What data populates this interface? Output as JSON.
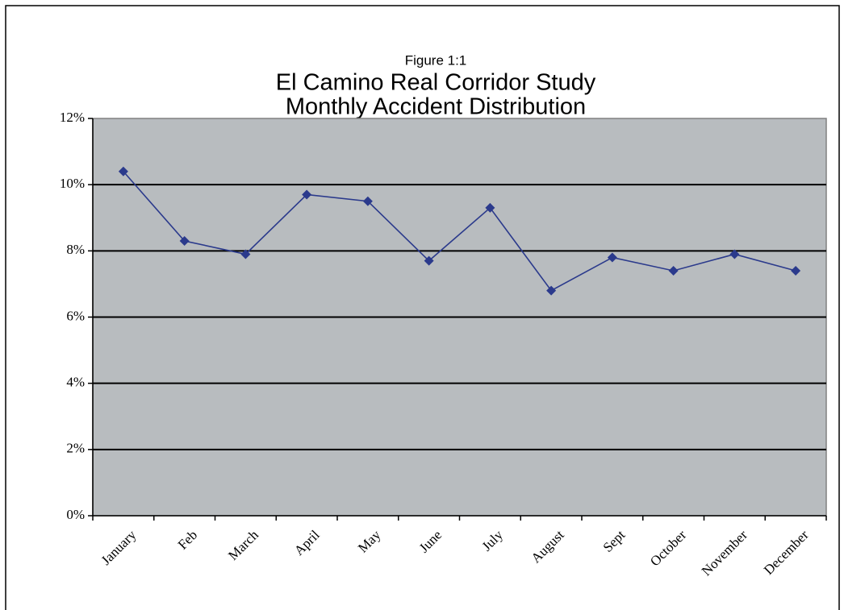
{
  "chart_data": {
    "type": "line",
    "supertitle": "Figure 1:1",
    "title": "El Camino Real Corridor Study",
    "subtitle": "Monthly Accident Distribution",
    "categories": [
      "January",
      "Feb",
      "March",
      "April",
      "May",
      "June",
      "July",
      "August",
      "Sept",
      "October",
      "November",
      "December"
    ],
    "series": [
      {
        "color": "#2b3a8c",
        "values": [
          10.4,
          8.3,
          7.9,
          9.7,
          9.5,
          7.7,
          9.3,
          6.8,
          7.8,
          7.4,
          7.9,
          7.4
        ]
      }
    ],
    "ylim": [
      0,
      12
    ],
    "yticks": [
      {
        "value": 0,
        "label": "0%"
      },
      {
        "value": 2,
        "label": "2%"
      },
      {
        "value": 4,
        "label": "4%"
      },
      {
        "value": 6,
        "label": "6%"
      },
      {
        "value": 8,
        "label": "8%"
      },
      {
        "value": 10,
        "label": "10%"
      },
      {
        "value": 12,
        "label": "12%"
      }
    ],
    "grid": true,
    "plot_background": "#b8bcbf"
  }
}
